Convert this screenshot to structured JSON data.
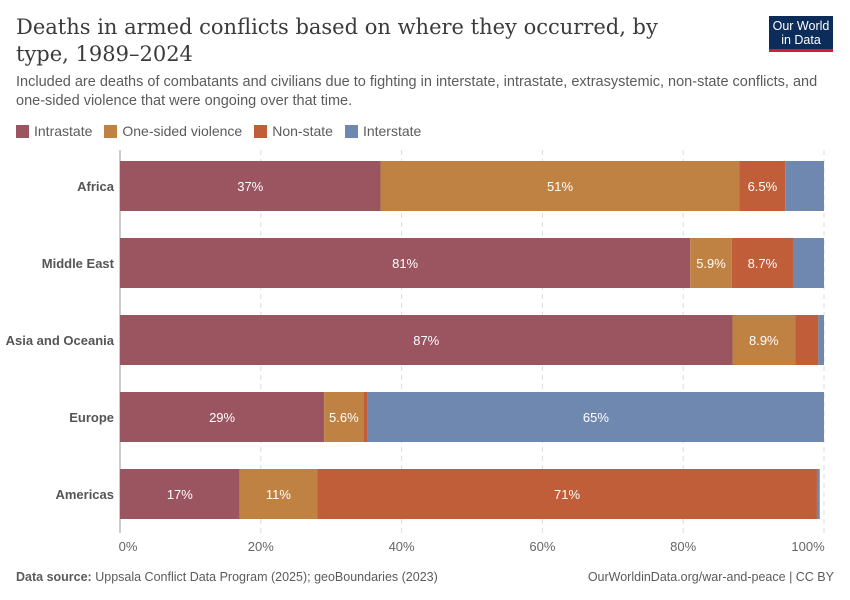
{
  "header": {
    "title": "Deaths in armed conflicts based on where they occurred, by type, 1989–2024",
    "subtitle": "Included are deaths of combatants and civilians due to fighting in interstate, intrastate, extrasystemic, non-state conflicts, and one-sided violence that were ongoing over that time.",
    "logo_line1": "Our World",
    "logo_line2": "in Data"
  },
  "footer": {
    "source_label": "Data source:",
    "source": "Uppsala Conflict Data Program (2025); geoBoundaries (2023)",
    "credit": "OurWorldinData.org/war-and-peace | CC BY"
  },
  "chart_data": {
    "type": "bar",
    "orientation": "horizontal",
    "stacked": true,
    "categories": [
      "Africa",
      "Middle East",
      "Asia and Oceania",
      "Europe",
      "Americas"
    ],
    "series": [
      {
        "name": "Intrastate",
        "color": "#9a5561",
        "values": [
          37,
          81,
          87,
          29,
          17
        ],
        "labels": [
          "37%",
          "81%",
          "87%",
          "29%",
          "17%"
        ]
      },
      {
        "name": "One-sided violence",
        "color": "#c08243",
        "values": [
          51,
          5.9,
          8.9,
          5.6,
          11
        ],
        "labels": [
          "51%",
          "5.9%",
          "8.9%",
          "5.6%",
          "11%"
        ]
      },
      {
        "name": "Non-state",
        "color": "#c05e39",
        "values": [
          6.5,
          8.7,
          3.3,
          0.6,
          71
        ],
        "labels": [
          "6.5%",
          "8.7%",
          "",
          "",
          "71%"
        ]
      },
      {
        "name": "Interstate",
        "color": "#6f88af",
        "values": [
          5.5,
          4.4,
          0.8,
          64.8,
          0.4
        ],
        "labels": [
          "",
          "",
          "",
          "65%",
          ""
        ]
      }
    ],
    "xlim": [
      0,
      100
    ],
    "xticks": [
      "0%",
      "20%",
      "40%",
      "60%",
      "80%",
      "100%"
    ],
    "grid": true,
    "legend": "top-left"
  }
}
